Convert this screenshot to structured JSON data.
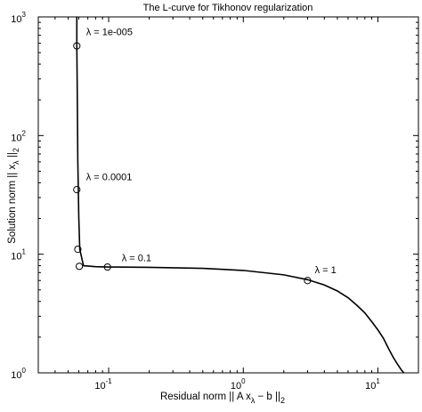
{
  "chart_data": {
    "type": "line",
    "title": "The L-curve for Tikhonov regularization",
    "xlabel": "Residual norm || A x",
    "xlabel_sub": "λ",
    "xlabel_tail": " − b ||",
    "xlabel_sub2": "2",
    "ylabel": "Solution norm || x",
    "ylabel_sub": "λ",
    "ylabel_tail": " ||",
    "ylabel_sub2": "2",
    "xscale": "log",
    "yscale": "log",
    "xlim": [
      0.03,
      20
    ],
    "ylim": [
      1,
      1000
    ],
    "grid": false,
    "x_ticks": [
      {
        "value": 0.1,
        "base": "10",
        "exp": "-1"
      },
      {
        "value": 1,
        "base": "10",
        "exp": "0"
      },
      {
        "value": 10,
        "base": "10",
        "exp": "1"
      }
    ],
    "y_ticks": [
      {
        "value": 1,
        "base": "10",
        "exp": "0"
      },
      {
        "value": 10,
        "base": "10",
        "exp": "1"
      },
      {
        "value": 100,
        "base": "10",
        "exp": "2"
      },
      {
        "value": 1000,
        "base": "10",
        "exp": "3"
      }
    ],
    "series": [
      {
        "x": [
          0.058,
          0.058,
          0.0585,
          0.059,
          0.0595,
          0.06,
          0.061,
          0.065,
          0.08,
          0.1,
          0.2,
          0.5,
          1.0,
          2.0,
          3.0,
          4.0,
          5.0,
          6.0,
          7.0,
          8.0,
          9.0,
          10.0,
          11.0,
          12.0,
          13.0,
          14.0,
          15.0,
          15.6
        ],
        "y": [
          1000,
          570,
          200,
          60,
          35,
          20,
          11,
          8.0,
          7.85,
          7.8,
          7.75,
          7.6,
          7.3,
          6.7,
          6.1,
          5.5,
          4.9,
          4.3,
          3.7,
          3.2,
          2.7,
          2.3,
          1.95,
          1.6,
          1.35,
          1.18,
          1.05,
          1.0
        ]
      }
    ],
    "markers": [
      {
        "x": 0.058,
        "y": 570
      },
      {
        "x": 0.058,
        "y": 35
      },
      {
        "x": 0.059,
        "y": 11
      },
      {
        "x": 0.0605,
        "y": 7.9
      },
      {
        "x": 0.098,
        "y": 7.8
      },
      {
        "x": 3.0,
        "y": 6.0
      }
    ],
    "annotations": [
      {
        "text": "λ = 1e-005",
        "x": 0.068,
        "y": 700
      },
      {
        "text": "λ = 0.0001",
        "x": 0.068,
        "y": 42
      },
      {
        "text": "λ = 0.1",
        "x": 0.125,
        "y": 8.7
      },
      {
        "text": "λ = 1",
        "x": 3.4,
        "y": 6.9
      }
    ]
  }
}
